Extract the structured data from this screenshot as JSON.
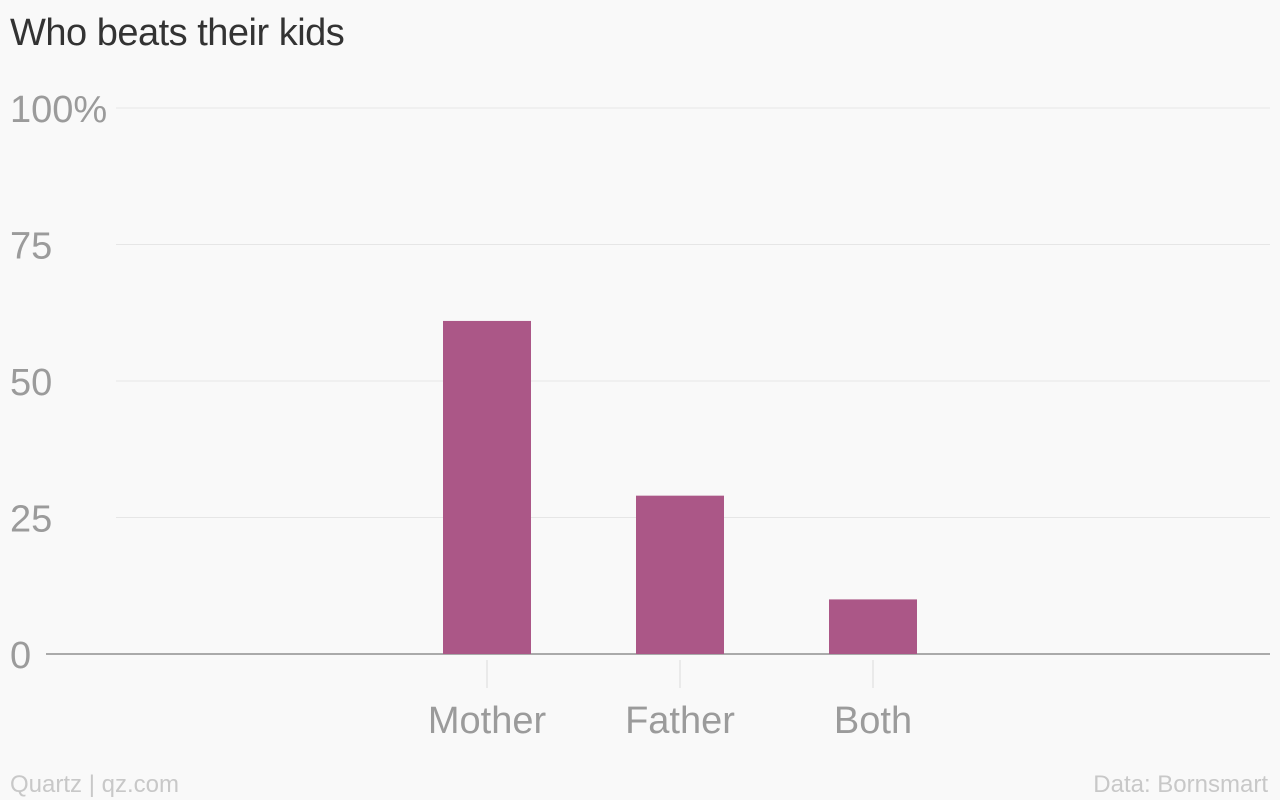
{
  "chart_data": {
    "type": "bar",
    "title": "Who beats their kids",
    "xlabel": "",
    "ylabel": "",
    "categories": [
      "Mother",
      "Father",
      "Both"
    ],
    "values": [
      61,
      29,
      10
    ],
    "ylim": [
      0,
      100
    ],
    "yticks": [
      0,
      25,
      50,
      75,
      100
    ],
    "ytick_labels": [
      "0",
      "25",
      "50",
      "75",
      "100%"
    ],
    "grid": true,
    "legend": "none",
    "bar_color": "#ab5787"
  },
  "footer": {
    "source_left": "Quartz | qz.com",
    "source_right": "Data: Bornsmart"
  }
}
